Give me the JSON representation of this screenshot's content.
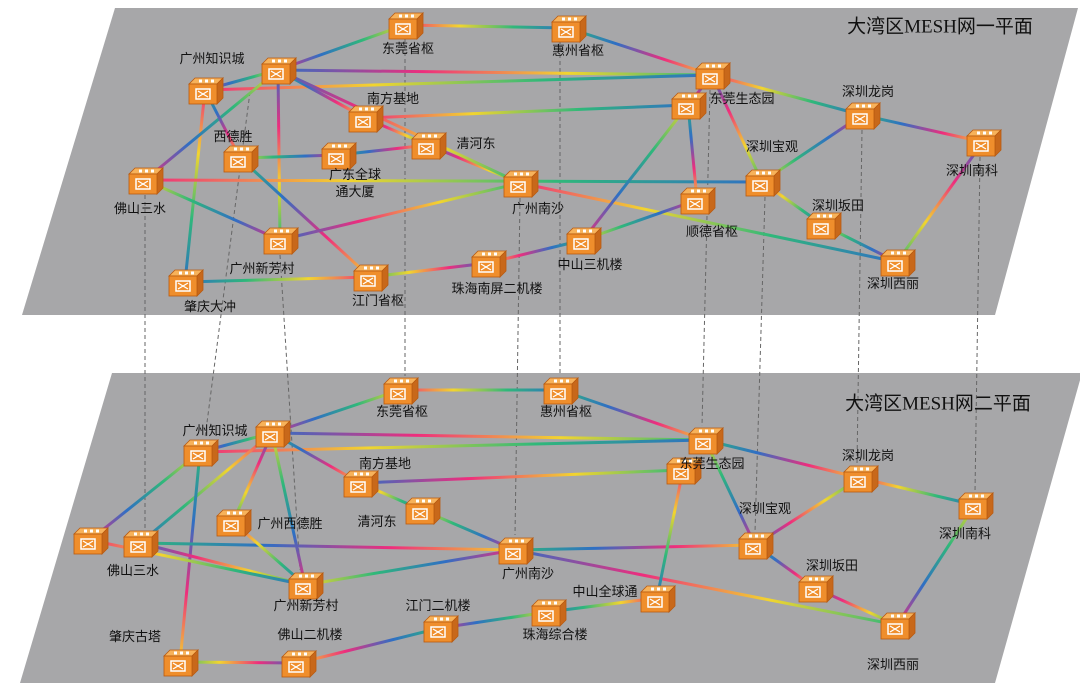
{
  "planes": [
    {
      "title": "大湾区MESH网一平面",
      "nodes": [
        {
          "label": "东莞省枢"
        },
        {
          "label": "惠州省枢"
        },
        {
          "label": "广州知识城"
        },
        {
          "label": "东莞生态园"
        },
        {
          "label": "南方基地"
        },
        {
          "label": "深圳龙岗"
        },
        {
          "label": "西德胜"
        },
        {
          "label": [
            "广东全球",
            "通大厦"
          ]
        },
        {
          "label": "清河东"
        },
        {
          "label": "深圳南科"
        },
        {
          "label": "深圳宝观"
        },
        {
          "label": "佛山三水"
        },
        {
          "label": "广州南沙"
        },
        {
          "label": "顺德省枢"
        },
        {
          "label": "深圳坂田"
        },
        {
          "label": "中山三机楼"
        },
        {
          "label": "广州新芳村"
        },
        {
          "label": "肇庆大冲"
        },
        {
          "label": "江门省枢"
        },
        {
          "label": "珠海南屏二机楼"
        },
        {
          "label": "深圳西丽"
        }
      ]
    },
    {
      "title": "大湾区MESH网二平面",
      "nodes": [
        {
          "label": "东莞省枢"
        },
        {
          "label": "惠州省枢"
        },
        {
          "label": "广州知识城"
        },
        {
          "label": "东莞生态园"
        },
        {
          "label": "南方基地"
        },
        {
          "label": "深圳龙岗"
        },
        {
          "label": "清河东"
        },
        {
          "label": "深圳南科"
        },
        {
          "label": "广州西德胜"
        },
        {
          "label": "深圳宝观"
        },
        {
          "label": "佛山三水"
        },
        {
          "label": "广州南沙"
        },
        {
          "label": "深圳坂田"
        },
        {
          "label": "广州新芳村"
        },
        {
          "label": "中山全球通"
        },
        {
          "label": "江门二机楼"
        },
        {
          "label": "珠海综合楼"
        },
        {
          "label": "深圳西丽"
        },
        {
          "label": "肇庆古塔"
        },
        {
          "label": "佛山二机楼"
        }
      ]
    }
  ]
}
